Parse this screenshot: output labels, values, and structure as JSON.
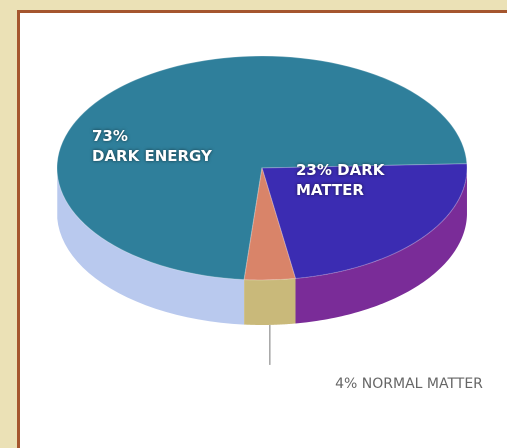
{
  "chart_data": {
    "type": "pie",
    "categories": [
      "DARK ENERGY",
      "DARK MATTER",
      "NORMAL MATTER"
    ],
    "values": [
      73,
      23,
      4
    ],
    "value_labels": [
      "73%",
      "23%",
      "4%"
    ],
    "colors": [
      "#2f7f9b",
      "#3b2cb2",
      "#d98469"
    ],
    "side_colors": [
      "#b9c9ee",
      "#7a2c98",
      "#c9b97a"
    ]
  }
}
